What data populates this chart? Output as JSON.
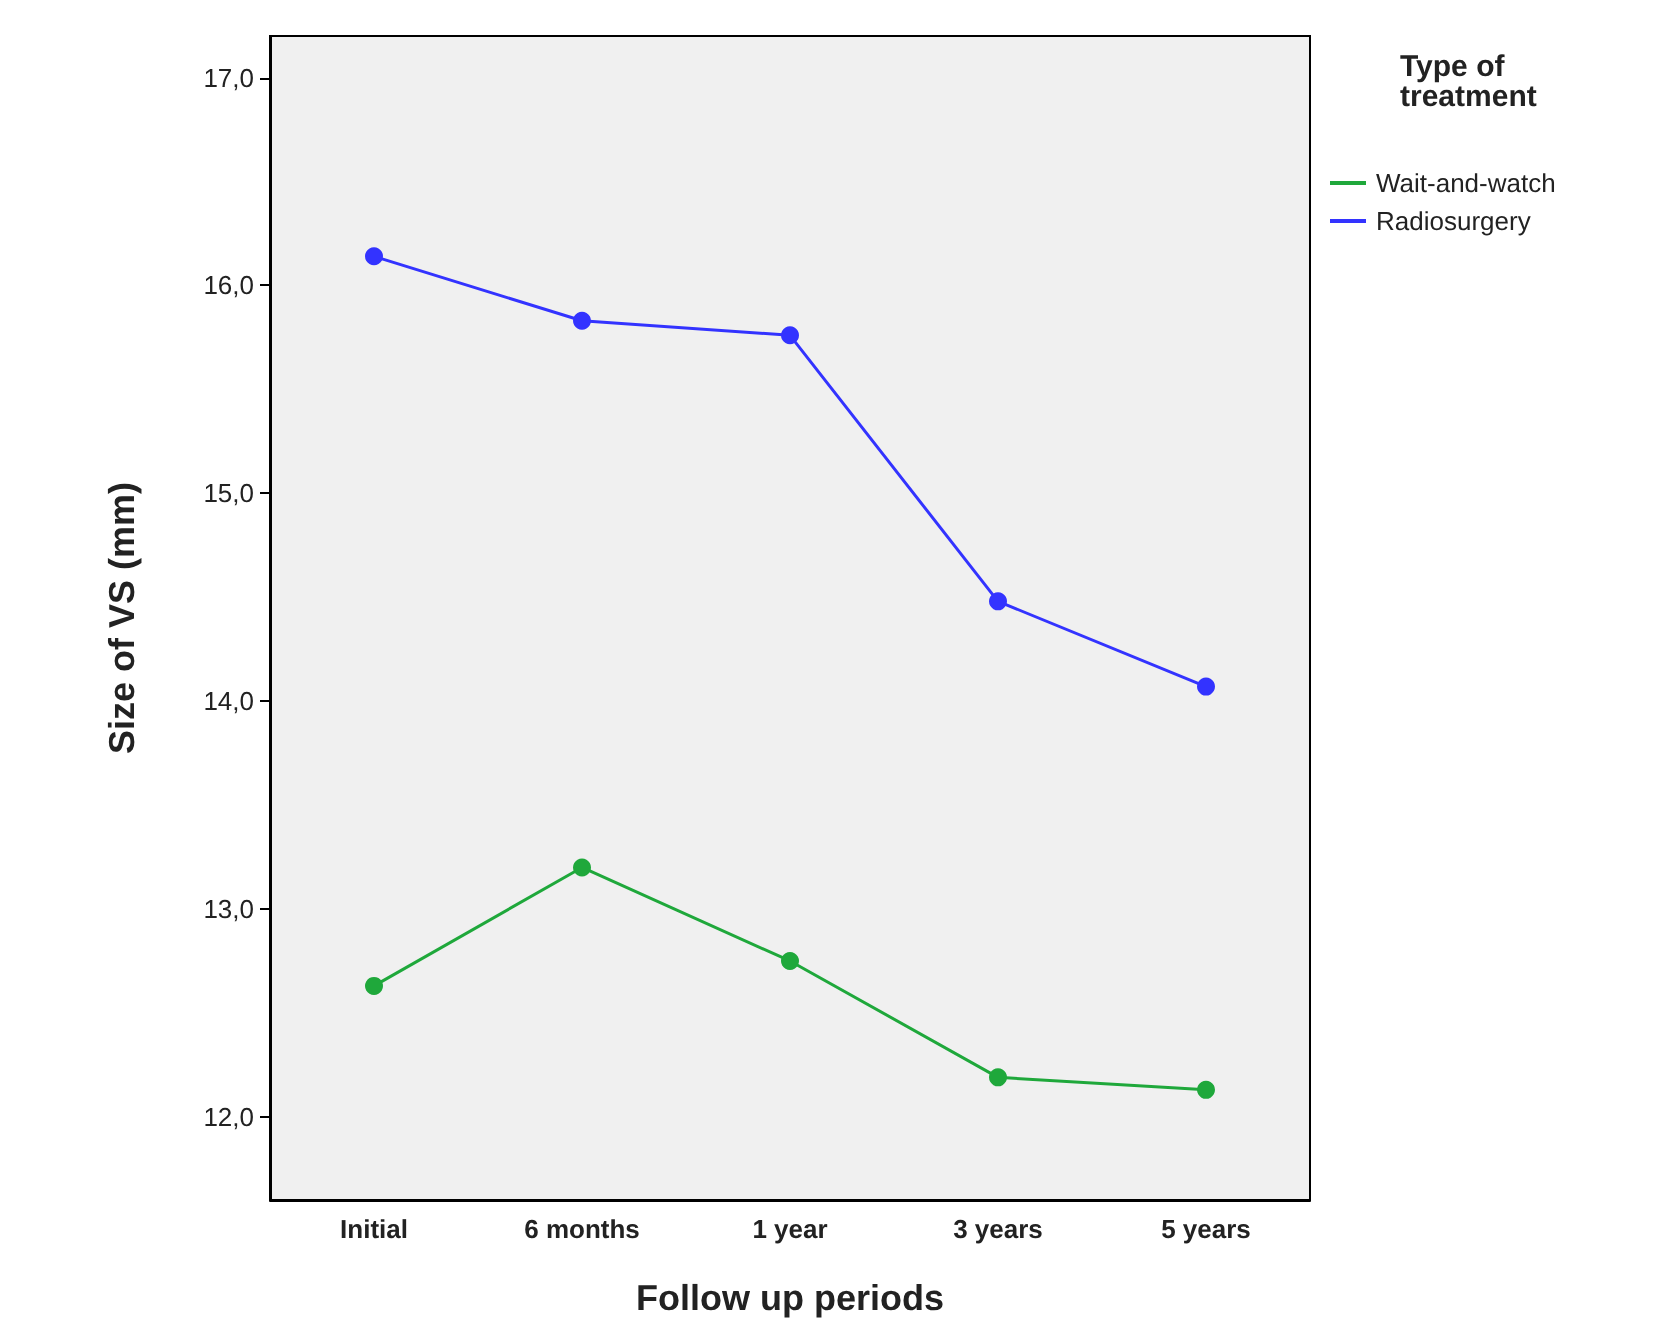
{
  "chart_data": {
    "type": "line",
    "xlabel": "Follow up periods",
    "ylabel": "Size of VS (mm)",
    "legend_title": "Type of treatment",
    "categories": [
      "Initial",
      "6 months",
      "1 year",
      "3 years",
      "5 years"
    ],
    "series": [
      {
        "name": "Wait-and-watch",
        "color": "#1fa83b",
        "values": [
          12.63,
          13.2,
          12.75,
          12.19,
          12.13
        ]
      },
      {
        "name": "Radiosurgery",
        "color": "#3333ff",
        "values": [
          16.14,
          15.83,
          15.76,
          14.48,
          14.07
        ]
      }
    ],
    "ylim": [
      11.6,
      17.2
    ],
    "yticks": [
      {
        "value": 12,
        "label": "12,0"
      },
      {
        "value": 13,
        "label": "13,0"
      },
      {
        "value": 14,
        "label": "14,0"
      },
      {
        "value": 15,
        "label": "15,0"
      },
      {
        "value": 16,
        "label": "16,0"
      },
      {
        "value": 17,
        "label": "17,0"
      }
    ],
    "grid": false,
    "legend": "top right",
    "marker": "circle",
    "line_style": "solid"
  }
}
